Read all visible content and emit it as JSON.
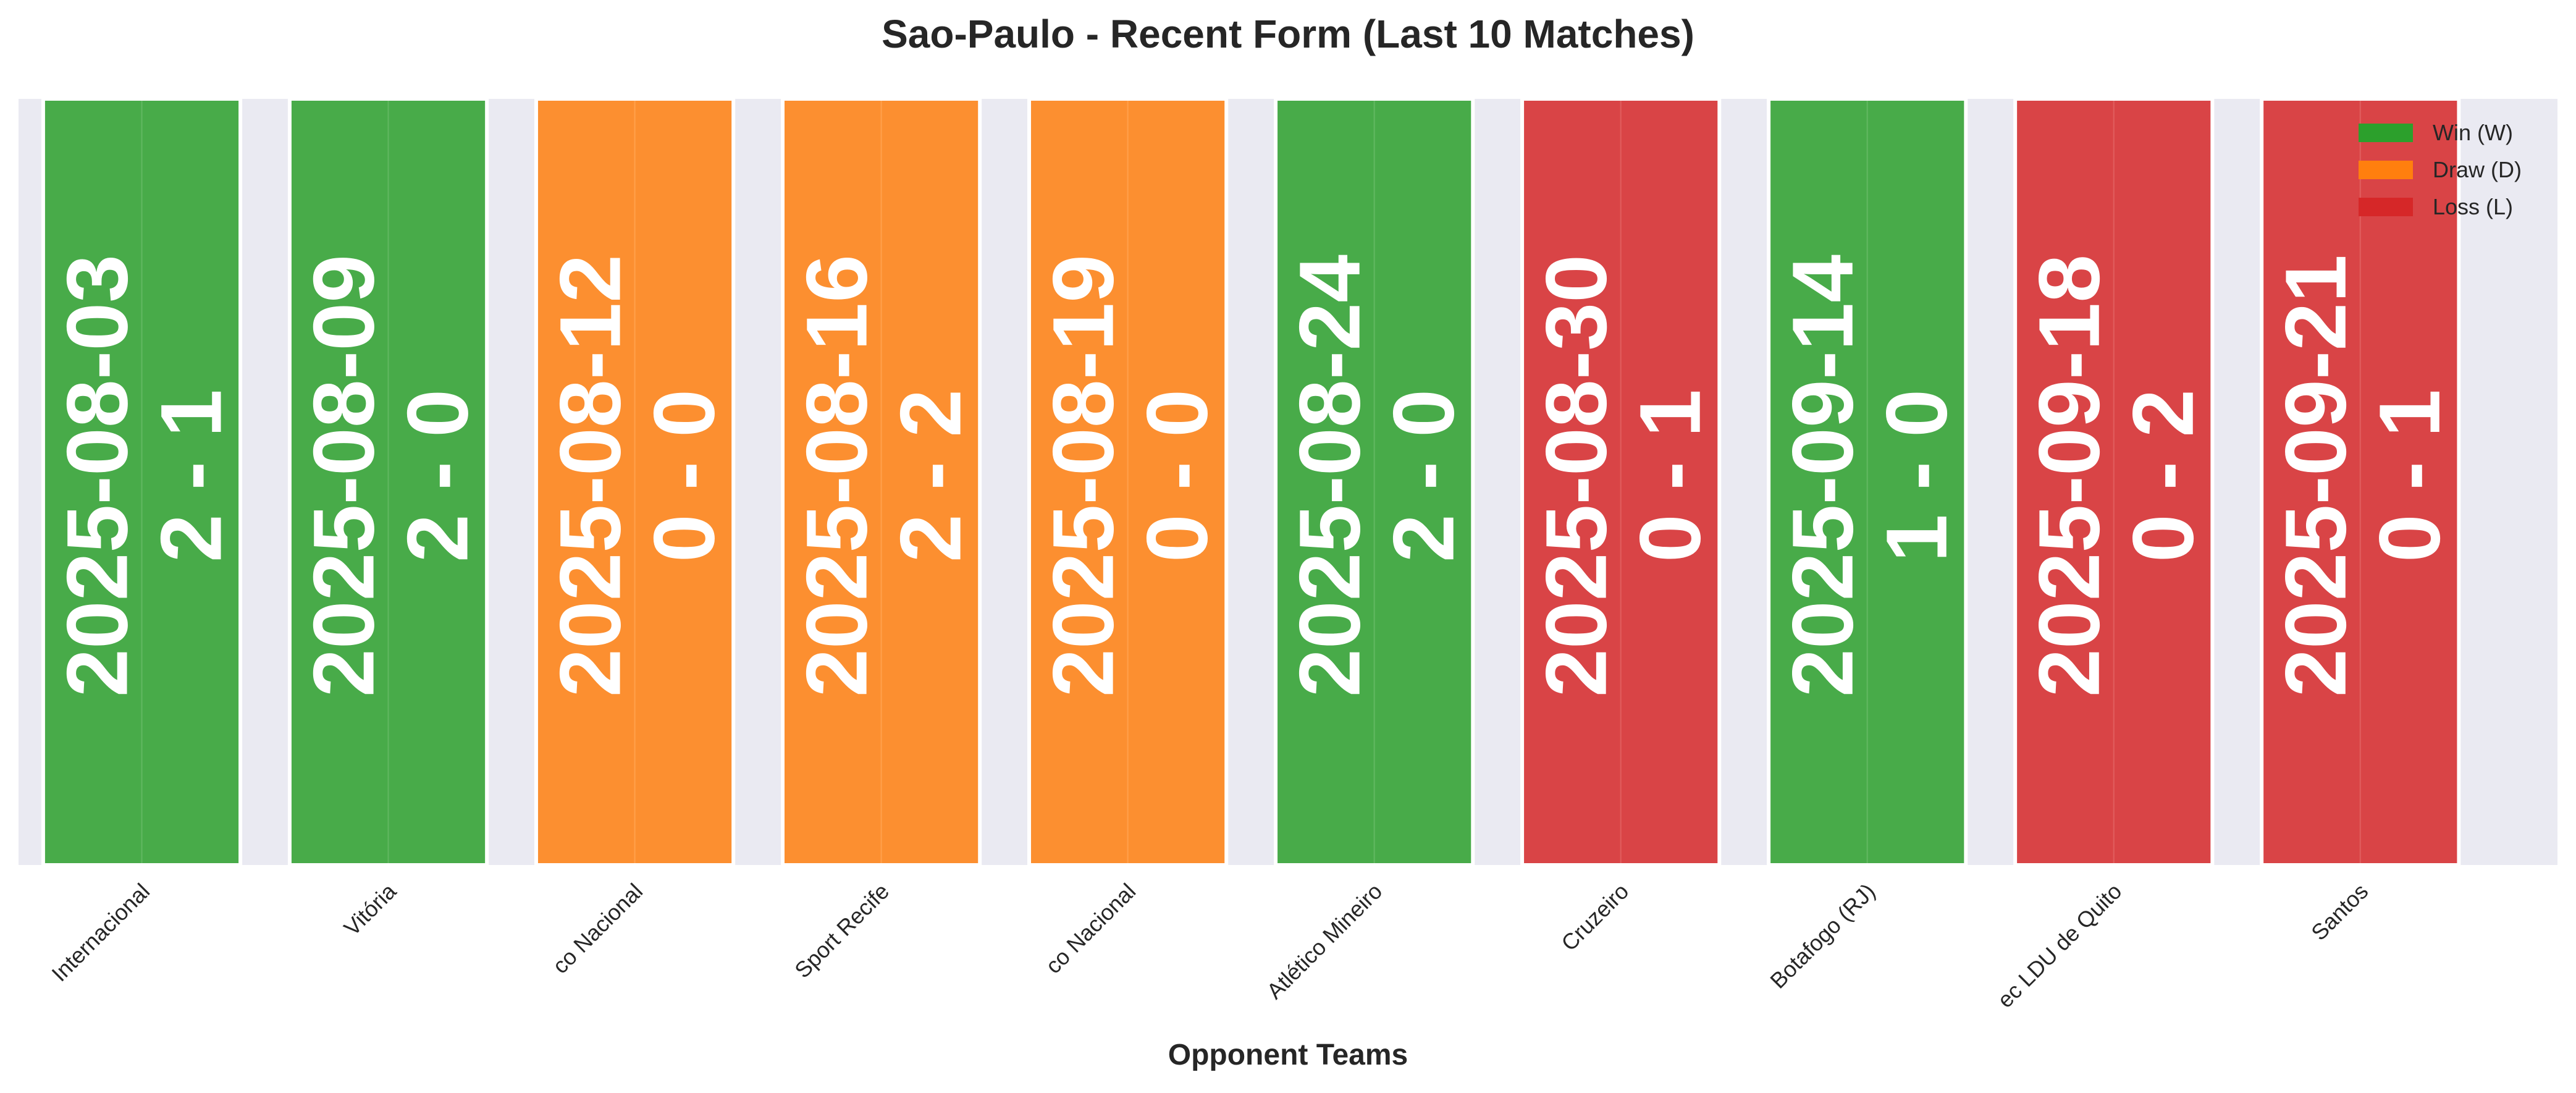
{
  "chart_data": {
    "type": "bar",
    "title": "Sao-Paulo - Recent Form (Last 10 Matches)",
    "xlabel": "Opponent Teams",
    "ylabel": "",
    "grid": true,
    "legend_position": "top-right",
    "categories": [
      "Internacional",
      "Vitória",
      "co Nacional",
      "Sport Recife",
      "co Nacional",
      "Atlético Mineiro",
      "Cruzeiro",
      "Botafogo (RJ)",
      "ec LDU de Quito",
      "Santos"
    ],
    "values": [
      1,
      1,
      1,
      1,
      1,
      1,
      1,
      1,
      1,
      1
    ],
    "dates": [
      "2025-08-03",
      "2025-08-09",
      "2025-08-12",
      "2025-08-16",
      "2025-08-19",
      "2025-08-24",
      "2025-08-30",
      "2025-09-14",
      "2025-09-18",
      "2025-09-21"
    ],
    "scores": [
      "2 - 1",
      "2 - 0",
      "0 - 0",
      "2 - 2",
      "0 - 0",
      "2 - 0",
      "0 - 1",
      "1 - 0",
      "0 - 2",
      "0 - 1"
    ],
    "results": [
      "W",
      "W",
      "D",
      "D",
      "D",
      "W",
      "L",
      "W",
      "L",
      "L"
    ],
    "colors": {
      "W": "#2ca02c",
      "D": "#ff7f0e",
      "L": "#d62728",
      "plot_background": "#eaeaf2"
    },
    "legend": [
      {
        "key": "W",
        "label": "Win (W)"
      },
      {
        "key": "D",
        "label": "Draw (D)"
      },
      {
        "key": "L",
        "label": "Loss (L)"
      }
    ]
  }
}
